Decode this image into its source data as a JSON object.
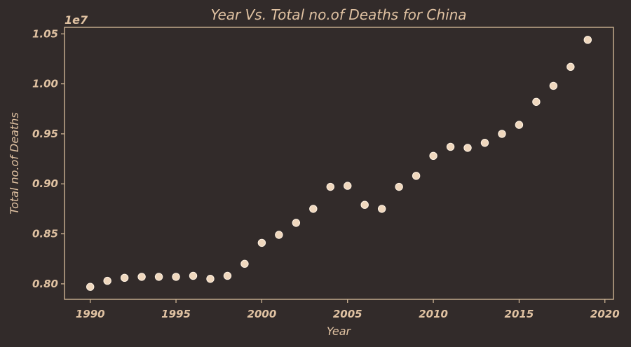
{
  "chart_data": {
    "type": "scatter",
    "title": "Year Vs. Total no.of Deaths for China",
    "xlabel": "Year",
    "ylabel": "Total no.of Deaths",
    "y_offset_label": "1e7",
    "xlim": [
      1988.5,
      2020.5
    ],
    "ylim": [
      0.7845,
      1.0565
    ],
    "x_ticks": [
      1990,
      1995,
      2000,
      2005,
      2010,
      2015,
      2020
    ],
    "x_tick_labels": [
      "1990",
      "1995",
      "2000",
      "2005",
      "2010",
      "2015",
      "2020"
    ],
    "y_ticks": [
      0.8,
      0.85,
      0.9,
      0.95,
      1.0,
      1.05
    ],
    "y_tick_labels": [
      "0.80",
      "0.85",
      "0.90",
      "0.95",
      "1.00",
      "1.05"
    ],
    "grid": false,
    "colors": {
      "background": "#322b2a",
      "point": "#efd7bd",
      "text": "#e0c2a2"
    },
    "x": [
      1990,
      1991,
      1992,
      1993,
      1994,
      1995,
      1996,
      1997,
      1998,
      1999,
      2000,
      2001,
      2002,
      2003,
      2004,
      2005,
      2006,
      2007,
      2008,
      2009,
      2010,
      2011,
      2012,
      2013,
      2014,
      2015,
      2016,
      2017,
      2018,
      2019
    ],
    "y": [
      0.797,
      0.803,
      0.806,
      0.807,
      0.807,
      0.807,
      0.808,
      0.805,
      0.808,
      0.82,
      0.841,
      0.849,
      0.861,
      0.875,
      0.897,
      0.898,
      0.879,
      0.875,
      0.897,
      0.908,
      0.928,
      0.937,
      0.936,
      0.941,
      0.95,
      0.959,
      0.982,
      0.998,
      1.017,
      1.044
    ]
  }
}
